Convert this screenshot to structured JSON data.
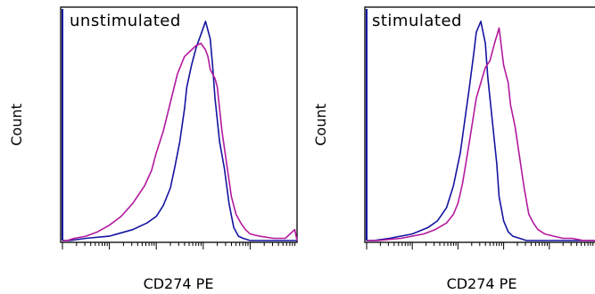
{
  "chart_data": [
    {
      "type": "line",
      "panel_label": "unstimulated",
      "xlabel": "CD274 PE",
      "ylabel": "Count",
      "x_scale": "log",
      "grid": false,
      "series": [
        {
          "color": "#1414a0",
          "x": [
            0.0,
            0.03,
            0.1,
            0.2,
            0.3,
            0.36,
            0.4,
            0.43,
            0.46,
            0.48,
            0.5,
            0.52,
            0.53,
            0.55,
            0.57,
            0.59,
            0.61,
            0.63,
            0.64,
            0.65,
            0.66,
            0.67,
            0.69,
            0.71,
            0.73,
            0.75,
            0.77,
            0.8,
            0.84,
            0.9,
            0.95,
            1.0
          ],
          "y": [
            0.0,
            0.0,
            0.01,
            0.02,
            0.05,
            0.08,
            0.11,
            0.16,
            0.24,
            0.34,
            0.45,
            0.6,
            0.7,
            0.8,
            0.88,
            0.94,
            1.0,
            0.92,
            0.8,
            0.65,
            0.55,
            0.45,
            0.33,
            0.17,
            0.06,
            0.02,
            0.01,
            0.0,
            0.0,
            0.0,
            0.0,
            0.0
          ]
        },
        {
          "color": "#b4199e",
          "x": [
            0.0,
            0.02,
            0.05,
            0.1,
            0.15,
            0.2,
            0.25,
            0.3,
            0.35,
            0.38,
            0.4,
            0.43,
            0.46,
            0.49,
            0.52,
            0.55,
            0.57,
            0.59,
            0.61,
            0.62,
            0.63,
            0.65,
            0.66,
            0.67,
            0.68,
            0.7,
            0.72,
            0.74,
            0.76,
            0.78,
            0.8,
            0.84,
            0.9,
            0.95,
            0.99,
            1.0
          ],
          "y": [
            0.0,
            0.0,
            0.01,
            0.02,
            0.04,
            0.07,
            0.11,
            0.17,
            0.25,
            0.32,
            0.4,
            0.5,
            0.63,
            0.76,
            0.84,
            0.87,
            0.89,
            0.9,
            0.87,
            0.84,
            0.78,
            0.74,
            0.7,
            0.6,
            0.5,
            0.35,
            0.2,
            0.12,
            0.08,
            0.05,
            0.03,
            0.02,
            0.01,
            0.01,
            0.05,
            0.0
          ]
        }
      ]
    },
    {
      "type": "line",
      "panel_label": "stimulated",
      "xlabel": "CD274 PE",
      "ylabel": "Count",
      "x_scale": "log",
      "grid": false,
      "series": [
        {
          "color": "#1414a0",
          "x": [
            0.0,
            0.03,
            0.1,
            0.2,
            0.27,
            0.31,
            0.35,
            0.38,
            0.41,
            0.43,
            0.45,
            0.47,
            0.48,
            0.5,
            0.52,
            0.53,
            0.55,
            0.57,
            0.58,
            0.6,
            0.62,
            0.64,
            0.67,
            0.7,
            0.75,
            0.85,
            1.0
          ],
          "y": [
            0.0,
            0.0,
            0.01,
            0.03,
            0.06,
            0.09,
            0.15,
            0.25,
            0.4,
            0.55,
            0.7,
            0.86,
            0.95,
            1.0,
            0.9,
            0.75,
            0.55,
            0.35,
            0.2,
            0.09,
            0.04,
            0.02,
            0.01,
            0.0,
            0.0,
            0.0,
            0.0
          ]
        },
        {
          "color": "#b4199e",
          "x": [
            0.0,
            0.05,
            0.15,
            0.25,
            0.3,
            0.35,
            0.38,
            0.4,
            0.42,
            0.45,
            0.48,
            0.5,
            0.52,
            0.54,
            0.56,
            0.58,
            0.6,
            0.62,
            0.63,
            0.65,
            0.67,
            0.69,
            0.71,
            0.73,
            0.75,
            0.78,
            0.82,
            0.86,
            0.9,
            0.95,
            1.0
          ],
          "y": [
            0.0,
            0.0,
            0.01,
            0.03,
            0.05,
            0.08,
            0.12,
            0.17,
            0.26,
            0.45,
            0.65,
            0.72,
            0.79,
            0.82,
            0.9,
            0.97,
            0.8,
            0.72,
            0.62,
            0.52,
            0.38,
            0.24,
            0.12,
            0.08,
            0.05,
            0.03,
            0.02,
            0.01,
            0.01,
            0.0,
            0.0
          ]
        }
      ]
    }
  ]
}
